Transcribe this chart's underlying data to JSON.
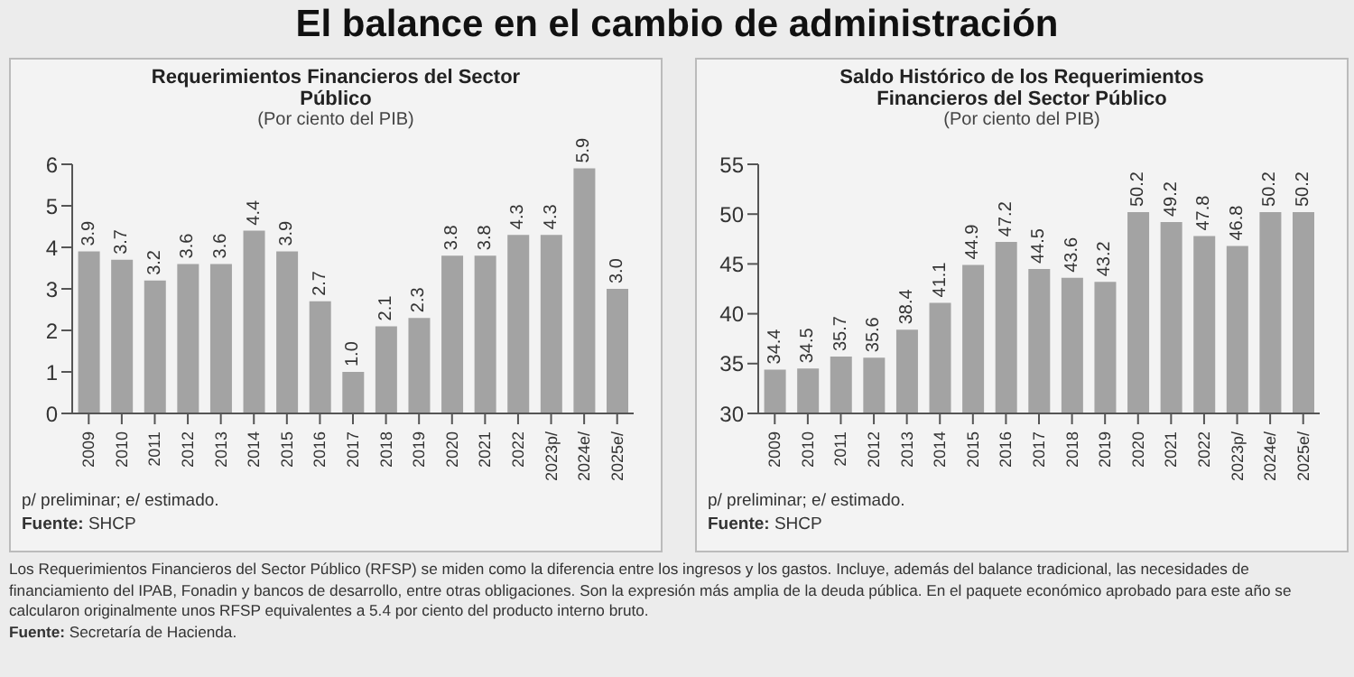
{
  "chart_data": [
    {
      "type": "bar",
      "title": "Requerimientos Financieros del Sector Público",
      "subtitle": "(Por ciento del PIB)",
      "categories": [
        "2009",
        "2010",
        "2011",
        "2012",
        "2013",
        "2014",
        "2015",
        "2016",
        "2017",
        "2018",
        "2019",
        "2020",
        "2021",
        "2022",
        "2023p/",
        "2024e/",
        "2025e/"
      ],
      "values": [
        3.9,
        3.7,
        3.2,
        3.6,
        3.6,
        4.4,
        3.9,
        2.7,
        1.0,
        2.1,
        2.3,
        3.8,
        3.8,
        4.3,
        4.3,
        5.9,
        3.0
      ],
      "value_labels": [
        "3.9",
        "3.7",
        "3.2",
        "3.6",
        "3.6",
        "4.4",
        "3.9",
        "2.7",
        "1.0",
        "2.1",
        "2.3",
        "3.8",
        "3.8",
        "4.3",
        "4.3",
        "5.9",
        "3.0"
      ],
      "color": "#a3a3a3",
      "ylim": [
        0,
        6
      ],
      "yticks": [
        0,
        1,
        2,
        3,
        4,
        5,
        6
      ],
      "annotations": [
        "El balance en el cambio de administración",
        "p/ preliminar; e/ estimado.",
        "Fuente: SHCP",
        "Los Requerimientos Financieros del Sector Público (RFSP) se miden como la diferencia entre los ingresos y los gastos. Incluye, además del balance tradicional, las necesidades de financiamiento del IPAB, Fonadin y bancos de desarrollo, entre otras obligaciones. Son la expresión más amplia de la deuda pública. En el paquete económico aprobado para este año se calcularon originalmente unos RFSP equivalentes a 5.4 por ciento del producto interno bruto.",
        "Fuente: Secretaría de Hacienda."
      ]
    },
    {
      "type": "bar",
      "title": "Saldo Histórico de los Requerimientos Financieros del Sector Público",
      "subtitle": "(Por ciento del PIB)",
      "categories": [
        "2009",
        "2010",
        "2011",
        "2012",
        "2013",
        "2014",
        "2015",
        "2016",
        "2017",
        "2018",
        "2019",
        "2020",
        "2021",
        "2022",
        "2023p/",
        "2024e/",
        "2025e/"
      ],
      "values": [
        34.4,
        34.5,
        35.7,
        35.6,
        38.4,
        41.1,
        44.9,
        47.2,
        44.5,
        43.6,
        43.2,
        50.2,
        49.2,
        47.8,
        46.8,
        50.2,
        50.2
      ],
      "value_labels": [
        "34.4",
        "34.5",
        "35.7",
        "35.6",
        "38.4",
        "41.1",
        "44.9",
        "47.2",
        "44.5",
        "43.6",
        "43.2",
        "50.2",
        "49.2",
        "47.8",
        "46.8",
        "50.2",
        "50.2"
      ],
      "color": "#a3a3a3",
      "ylim": [
        30,
        55
      ],
      "yticks": [
        30,
        35,
        40,
        45,
        50,
        55
      ],
      "annotations": [
        "p/ preliminar; e/ estimado.",
        "Fuente: SHCP"
      ]
    }
  ]
}
